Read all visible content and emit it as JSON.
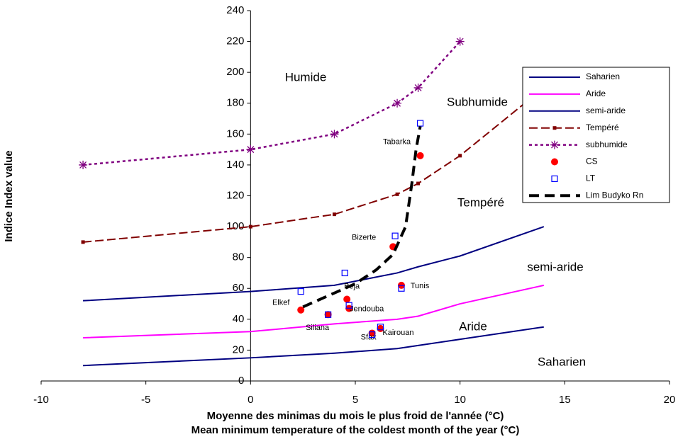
{
  "chart_data": {
    "type": "line",
    "xlabel": [
      "Moyenne des minimas du mois le plus froid de l'année (°C)",
      "Mean minimum temperature of the coldest month of the year (°C)"
    ],
    "ylabel": "Indice Index value",
    "xlim": [
      -10,
      20
    ],
    "xticks": [
      -10,
      -5,
      0,
      5,
      10,
      15,
      20
    ],
    "ylim": [
      0,
      240
    ],
    "yticks": [
      0,
      20,
      40,
      60,
      80,
      100,
      120,
      140,
      160,
      180,
      200,
      220,
      240
    ],
    "grid": false,
    "legend": "right",
    "series": [
      {
        "name": "Saharien",
        "type": "line",
        "color": "#000080",
        "dash": "solid",
        "marker": "none",
        "x": [
          -8,
          0,
          4,
          7,
          8,
          10,
          14
        ],
        "values": [
          10,
          15,
          18,
          21,
          23,
          27,
          35
        ]
      },
      {
        "name": "Aride",
        "type": "line",
        "color": "#ff00ff",
        "dash": "solid",
        "marker": "none",
        "x": [
          -8,
          0,
          4,
          7,
          8,
          10,
          14
        ],
        "values": [
          28,
          32,
          37,
          40,
          42,
          50,
          62
        ]
      },
      {
        "name": "semi-aride",
        "type": "line",
        "color": "#000080",
        "dash": "solid",
        "marker": "none",
        "x": [
          -8,
          0,
          4,
          7,
          8,
          10,
          14
        ],
        "values": [
          52,
          58,
          62,
          70,
          74,
          81,
          100
        ]
      },
      {
        "name": "Tempéré",
        "type": "line",
        "color": "#800000",
        "dash": "dashed",
        "marker": "square",
        "x": [
          -8,
          0,
          4,
          7,
          8,
          10,
          14
        ],
        "values": [
          90,
          100,
          108,
          121,
          128,
          146,
          190
        ]
      },
      {
        "name": "subhumide",
        "type": "line",
        "color": "#800080",
        "dash": "dotted",
        "marker": "asterisk",
        "x": [
          -8,
          0,
          4,
          7,
          8,
          10
        ],
        "values": [
          140,
          150,
          160,
          180,
          190,
          220
        ]
      },
      {
        "name": "CS",
        "type": "scatter",
        "color": "#ff0000",
        "dash": "none",
        "marker": "circle",
        "x": [
          2.4,
          3.7,
          4.6,
          4.7,
          5.8,
          6.2,
          7.2,
          6.8,
          8.1
        ],
        "values": [
          46,
          43,
          53,
          47,
          31,
          34,
          62,
          87,
          146
        ],
        "labels": [
          "Elkef",
          "Siliana",
          "Beja",
          "Jendouba",
          "Sfax",
          "Kairouan",
          "Tunis",
          "Bizerte",
          "Tabarka"
        ]
      },
      {
        "name": "LT",
        "type": "scatter",
        "color": "#0000ff",
        "dash": "none",
        "marker": "open-square",
        "x": [
          2.4,
          3.7,
          4.5,
          4.7,
          5.8,
          6.2,
          7.2,
          6.9,
          8.1
        ],
        "values": [
          58,
          43,
          70,
          49,
          30,
          35,
          60,
          94,
          167
        ]
      },
      {
        "name": "Lim Budyko Rn",
        "type": "line",
        "color": "#000000",
        "dash": "longdash",
        "marker": "none",
        "x": [
          2.5,
          4,
          5,
          6,
          6.8,
          7.4,
          7.7,
          7.9,
          8.1
        ],
        "values": [
          48,
          57,
          63,
          72,
          82,
          100,
          128,
          150,
          165
        ]
      }
    ],
    "region_labels": [
      "Humide",
      "Subhumide",
      "Tempéré",
      "semi-aride",
      "Aride",
      "Saharien"
    ]
  }
}
